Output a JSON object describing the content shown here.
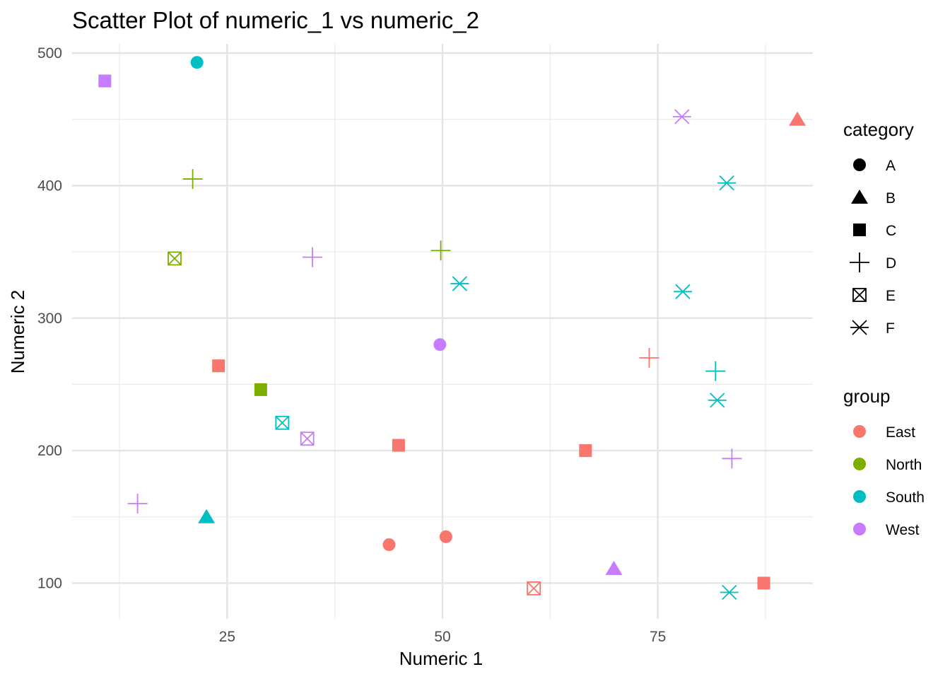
{
  "chart_data": {
    "type": "scatter",
    "title": "Scatter Plot of numeric_1 vs numeric_2",
    "xlabel": "Numeric 1",
    "ylabel": "Numeric 2",
    "xlim": [
      7,
      93
    ],
    "ylim": [
      73,
      507
    ],
    "x_ticks": [
      25,
      50,
      75
    ],
    "y_ticks": [
      100,
      200,
      300,
      400,
      500
    ],
    "grid": true,
    "legend_placement": "right",
    "legends": {
      "category": {
        "title": "category",
        "entries": [
          {
            "label": "A",
            "shape": "circle"
          },
          {
            "label": "B",
            "shape": "triangle"
          },
          {
            "label": "C",
            "shape": "square"
          },
          {
            "label": "D",
            "shape": "plus"
          },
          {
            "label": "E",
            "shape": "square-cross"
          },
          {
            "label": "F",
            "shape": "asterisk"
          }
        ]
      },
      "group": {
        "title": "group",
        "entries": [
          {
            "label": "East",
            "color": "#F8766D"
          },
          {
            "label": "North",
            "color": "#7CAE00"
          },
          {
            "label": "South",
            "color": "#00BFC4"
          },
          {
            "label": "West",
            "color": "#C77CFF"
          }
        ]
      }
    },
    "points": [
      {
        "x": 21.5,
        "y": 493,
        "category": "A",
        "group": "South"
      },
      {
        "x": 10.8,
        "y": 479,
        "category": "C",
        "group": "West"
      },
      {
        "x": 21.0,
        "y": 405,
        "category": "D",
        "group": "North"
      },
      {
        "x": 18.9,
        "y": 345,
        "category": "E",
        "group": "North"
      },
      {
        "x": 34.9,
        "y": 346,
        "category": "D",
        "group": "West"
      },
      {
        "x": 49.8,
        "y": 351,
        "category": "D",
        "group": "North"
      },
      {
        "x": 52.0,
        "y": 326,
        "category": "F",
        "group": "South"
      },
      {
        "x": 49.7,
        "y": 280,
        "category": "A",
        "group": "West"
      },
      {
        "x": 77.8,
        "y": 452,
        "category": "F",
        "group": "West"
      },
      {
        "x": 91.2,
        "y": 450,
        "category": "B",
        "group": "East"
      },
      {
        "x": 83.0,
        "y": 402,
        "category": "F",
        "group": "South"
      },
      {
        "x": 77.9,
        "y": 320,
        "category": "F",
        "group": "South"
      },
      {
        "x": 74.0,
        "y": 270,
        "category": "D",
        "group": "East"
      },
      {
        "x": 81.7,
        "y": 260,
        "category": "D",
        "group": "South"
      },
      {
        "x": 81.9,
        "y": 238,
        "category": "F",
        "group": "South"
      },
      {
        "x": 24.0,
        "y": 264,
        "category": "C",
        "group": "East"
      },
      {
        "x": 28.9,
        "y": 246,
        "category": "C",
        "group": "North"
      },
      {
        "x": 31.4,
        "y": 221,
        "category": "E",
        "group": "South"
      },
      {
        "x": 34.3,
        "y": 209,
        "category": "E",
        "group": "West"
      },
      {
        "x": 44.9,
        "y": 204,
        "category": "C",
        "group": "East"
      },
      {
        "x": 66.6,
        "y": 200,
        "category": "C",
        "group": "East"
      },
      {
        "x": 83.6,
        "y": 194,
        "category": "D",
        "group": "West"
      },
      {
        "x": 14.6,
        "y": 160,
        "category": "D",
        "group": "West"
      },
      {
        "x": 22.6,
        "y": 150,
        "category": "B",
        "group": "South"
      },
      {
        "x": 43.8,
        "y": 129,
        "category": "A",
        "group": "East"
      },
      {
        "x": 50.4,
        "y": 135,
        "category": "A",
        "group": "East"
      },
      {
        "x": 69.9,
        "y": 111,
        "category": "B",
        "group": "West"
      },
      {
        "x": 60.6,
        "y": 96,
        "category": "E",
        "group": "East"
      },
      {
        "x": 83.3,
        "y": 93,
        "category": "F",
        "group": "South"
      },
      {
        "x": 87.3,
        "y": 100,
        "category": "C",
        "group": "East"
      }
    ]
  }
}
